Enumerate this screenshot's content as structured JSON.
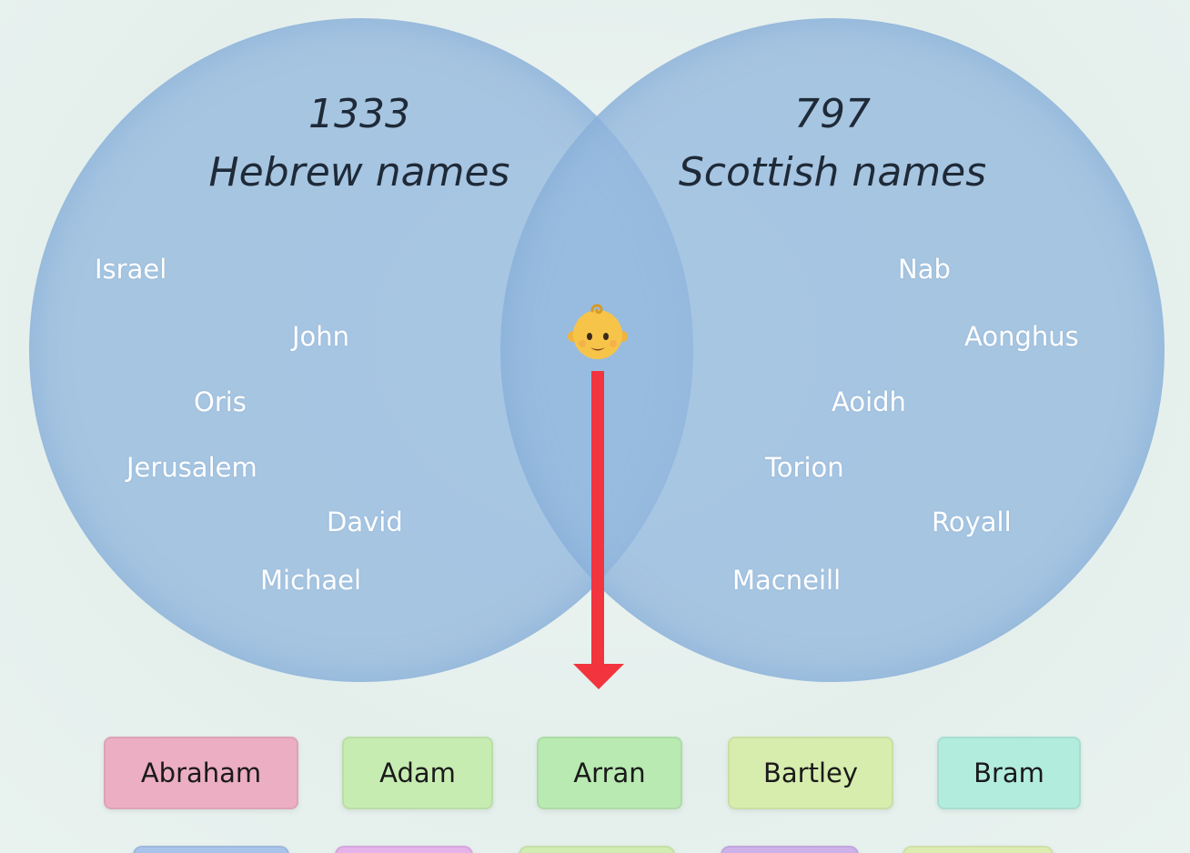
{
  "venn": {
    "left": {
      "count": "1333",
      "title": "Hebrew names",
      "names": [
        "Israel",
        "John",
        "Oris",
        "Jerusalem",
        "David",
        "Michael"
      ]
    },
    "right": {
      "count": "797",
      "title": "Scottish names",
      "names": [
        "Nab",
        "Aonghus",
        "Aoidh",
        "Torion",
        "Royall",
        "Macneill"
      ]
    },
    "center_icon": "baby-face-icon",
    "arrow_color": "#f2343e"
  },
  "results": [
    {
      "label": "Abraham",
      "color": "#ebaec3"
    },
    {
      "label": "Adam",
      "color": "#c6ecb2"
    },
    {
      "label": "Arran",
      "color": "#b8eab2"
    },
    {
      "label": "Bartley",
      "color": "#d6edae"
    },
    {
      "label": "Bram",
      "color": "#b2ecdd"
    }
  ],
  "results_partial_colors": [
    "#a9c4ea",
    "#e5b2ea",
    "#d2edb2",
    "#cdb2ea",
    "#ddedb2"
  ]
}
